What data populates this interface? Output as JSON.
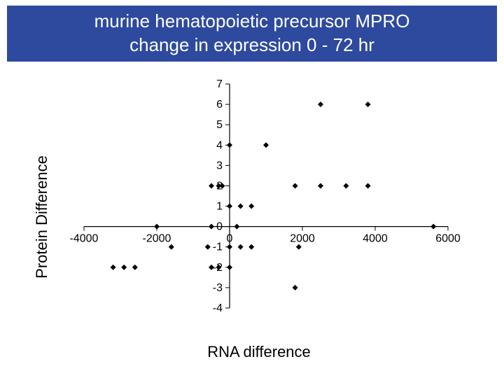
{
  "title": {
    "line1": "murine hematopoietic precursor MPRO",
    "line2": "change in expression 0 - 72 hr",
    "background_color": "#2e4a9e",
    "text_color": "#ffffff",
    "fontsize": 26
  },
  "chart": {
    "type": "scatter",
    "xlabel": "RNA difference",
    "ylabel": "Protein Difference",
    "label_fontsize": 22,
    "tick_fontsize": 16,
    "xlim": [
      -4000,
      6000
    ],
    "ylim": [
      -4,
      7
    ],
    "xticks": [
      -4000,
      -2000,
      0,
      2000,
      4000,
      6000
    ],
    "yticks": [
      -4,
      -3,
      -2,
      -1,
      0,
      1,
      2,
      3,
      4,
      5,
      6,
      7
    ],
    "axis_color": "#000000",
    "background_color": "#ffffff",
    "marker": {
      "shape": "diamond",
      "size": 8,
      "fill": "#000000"
    },
    "points": [
      [
        -3200,
        -2
      ],
      [
        -2900,
        -2
      ],
      [
        -2600,
        -2
      ],
      [
        -2000,
        0
      ],
      [
        -1600,
        -1
      ],
      [
        -600,
        -1
      ],
      [
        -500,
        -2
      ],
      [
        -300,
        -2
      ],
      [
        -500,
        0
      ],
      [
        -300,
        2
      ],
      [
        -200,
        2
      ],
      [
        -500,
        2
      ],
      [
        0,
        1
      ],
      [
        0,
        -1
      ],
      [
        0,
        4
      ],
      [
        0,
        -2
      ],
      [
        200,
        0
      ],
      [
        300,
        1
      ],
      [
        300,
        -1
      ],
      [
        600,
        1
      ],
      [
        600,
        -1
      ],
      [
        1000,
        4
      ],
      [
        1800,
        2
      ],
      [
        1800,
        -3
      ],
      [
        1900,
        -1
      ],
      [
        2500,
        6
      ],
      [
        2500,
        2
      ],
      [
        3200,
        2
      ],
      [
        3800,
        6
      ],
      [
        3800,
        2
      ],
      [
        5600,
        0
      ]
    ]
  }
}
